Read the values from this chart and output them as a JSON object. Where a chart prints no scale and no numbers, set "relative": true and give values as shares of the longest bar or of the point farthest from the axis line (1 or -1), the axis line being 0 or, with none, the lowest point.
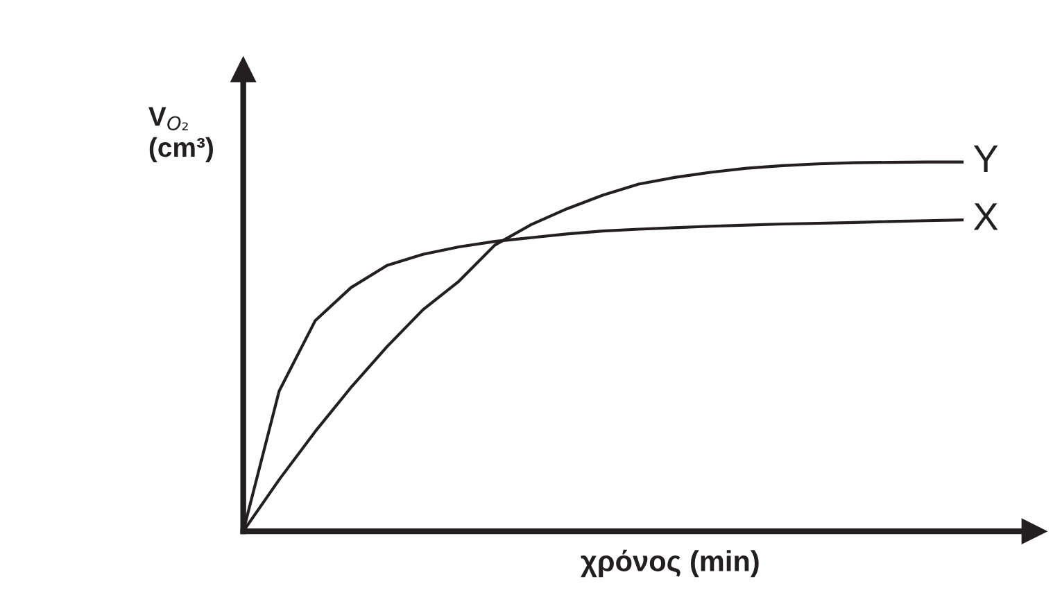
{
  "chart_data": {
    "type": "line",
    "relative": true,
    "xlabel": "χρόνος (min)",
    "ylabel": "V$_{O₂}$\n(cm³)",
    "marker": "none",
    "line_style": "solid",
    "categories": [
      null,
      null,
      null,
      null,
      null,
      null,
      null,
      null,
      null,
      null,
      null,
      null,
      null,
      null,
      null,
      null,
      null,
      null,
      null,
      null,
      null
    ],
    "series": [
      {
        "name": "Y",
        "color": "#231f20",
        "values": [
          0,
          0.14,
          0.27,
          0.39,
          0.5,
          0.6,
          0.677,
          0.775,
          0.83,
          0.873,
          0.91,
          0.94,
          0.958,
          0.972,
          0.983,
          0.99,
          0.995,
          0.998,
          0.999,
          1,
          1
        ]
      },
      {
        "name": "X",
        "color": "#231f20",
        "values": [
          0,
          0.38,
          0.57,
          0.66,
          0.72,
          0.75,
          0.77,
          0.785,
          0.795,
          0.805,
          0.813,
          0.818,
          0.822,
          0.826,
          0.829,
          0.832,
          0.834,
          0.836,
          0.839,
          0.841,
          0.843
        ]
      }
    ]
  }
}
